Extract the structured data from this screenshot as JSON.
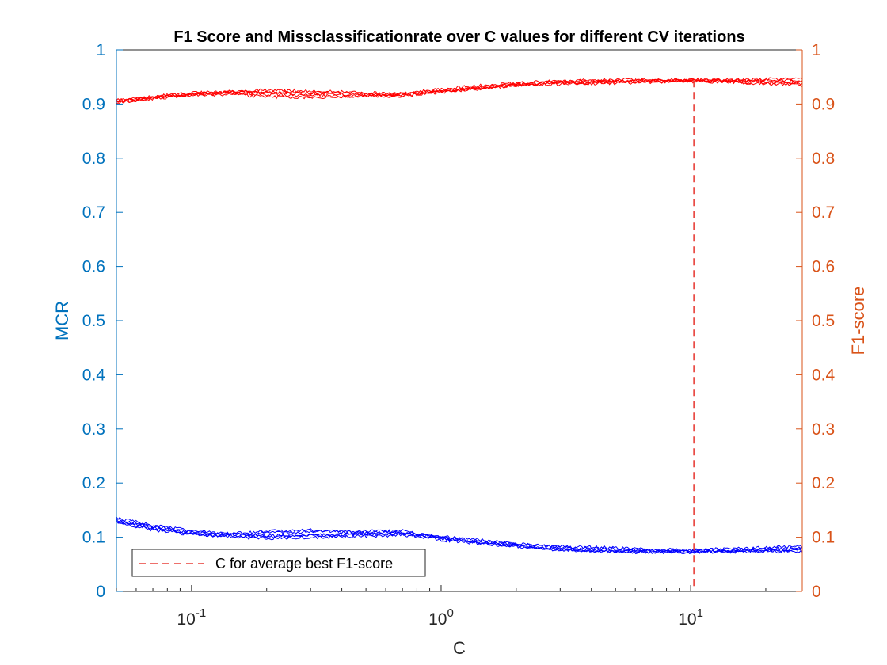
{
  "chart_data": {
    "type": "line",
    "title": "F1 Score and Missclassificationrate over C values for different CV iterations",
    "xlabel": "C",
    "ylabel_left": "MCR",
    "ylabel_right": "F1-score",
    "x_scale": "log",
    "xlim": [
      0.05,
      28
    ],
    "ylim_left": [
      0,
      1
    ],
    "ylim_right": [
      0,
      1
    ],
    "x_ticks": [
      {
        "value": 0.1,
        "base": "10",
        "exp": "-1"
      },
      {
        "value": 1,
        "base": "10",
        "exp": "0"
      },
      {
        "value": 10,
        "base": "10",
        "exp": "1"
      }
    ],
    "y_ticks_left": [
      "0",
      "0.1",
      "0.2",
      "0.3",
      "0.4",
      "0.5",
      "0.6",
      "0.7",
      "0.8",
      "0.9",
      "1"
    ],
    "y_ticks_right": [
      "0",
      "0.1",
      "0.2",
      "0.3",
      "0.4",
      "0.5",
      "0.6",
      "0.7",
      "0.8",
      "0.9",
      "1"
    ],
    "grid": false,
    "legend": {
      "placement": "bottom-left",
      "entries": [
        {
          "label": "C for average best F1-score",
          "style": "dashed",
          "color": "#e8403a"
        }
      ]
    },
    "best_c": 10.3,
    "colors": {
      "left_axis": "#0072bd",
      "right_axis": "#d95319",
      "mcr_series": "#0000ff",
      "f1_series": "#ff0000",
      "best_c_line": "#e8403a"
    },
    "x": [
      0.05,
      0.07,
      0.1,
      0.15,
      0.2,
      0.3,
      0.5,
      0.7,
      1.0,
      1.5,
      2.0,
      3.0,
      5.0,
      7.0,
      10.0,
      15.0,
      20.0,
      28.0
    ],
    "mcr_series": [
      {
        "values": [
          0.135,
          0.122,
          0.112,
          0.105,
          0.103,
          0.104,
          0.105,
          0.107,
          0.1,
          0.092,
          0.088,
          0.081,
          0.078,
          0.076,
          0.075,
          0.076,
          0.078,
          0.08
        ]
      },
      {
        "values": [
          0.13,
          0.118,
          0.108,
          0.104,
          0.108,
          0.11,
          0.112,
          0.11,
          0.097,
          0.09,
          0.085,
          0.078,
          0.075,
          0.074,
          0.074,
          0.075,
          0.075,
          0.076
        ]
      },
      {
        "values": [
          0.128,
          0.116,
          0.106,
          0.1,
          0.098,
          0.1,
          0.102,
          0.104,
          0.095,
          0.088,
          0.083,
          0.076,
          0.073,
          0.072,
          0.072,
          0.074,
          0.077,
          0.079
        ]
      },
      {
        "values": [
          0.133,
          0.12,
          0.11,
          0.107,
          0.111,
          0.113,
          0.108,
          0.106,
          0.102,
          0.094,
          0.087,
          0.083,
          0.08,
          0.078,
          0.076,
          0.079,
          0.081,
          0.083
        ]
      },
      {
        "values": [
          0.127,
          0.114,
          0.105,
          0.102,
          0.101,
          0.103,
          0.107,
          0.112,
          0.099,
          0.089,
          0.084,
          0.077,
          0.074,
          0.073,
          0.073,
          0.073,
          0.074,
          0.073
        ]
      }
    ],
    "f1_series": [
      {
        "values": [
          0.905,
          0.912,
          0.918,
          0.922,
          0.921,
          0.919,
          0.918,
          0.917,
          0.925,
          0.932,
          0.936,
          0.94,
          0.942,
          0.943,
          0.944,
          0.943,
          0.942,
          0.941
        ]
      },
      {
        "values": [
          0.902,
          0.91,
          0.916,
          0.92,
          0.918,
          0.916,
          0.914,
          0.915,
          0.922,
          0.929,
          0.934,
          0.938,
          0.941,
          0.942,
          0.943,
          0.941,
          0.939,
          0.938
        ]
      },
      {
        "values": [
          0.907,
          0.914,
          0.92,
          0.924,
          0.926,
          0.924,
          0.921,
          0.919,
          0.928,
          0.935,
          0.939,
          0.943,
          0.945,
          0.945,
          0.945,
          0.944,
          0.944,
          0.943
        ]
      },
      {
        "values": [
          0.903,
          0.911,
          0.917,
          0.918,
          0.913,
          0.912,
          0.915,
          0.92,
          0.924,
          0.93,
          0.935,
          0.937,
          0.939,
          0.941,
          0.942,
          0.94,
          0.937,
          0.935
        ]
      },
      {
        "values": [
          0.906,
          0.913,
          0.919,
          0.923,
          0.922,
          0.921,
          0.919,
          0.914,
          0.923,
          0.931,
          0.937,
          0.941,
          0.943,
          0.944,
          0.944,
          0.945,
          0.946,
          0.946
        ]
      }
    ]
  }
}
